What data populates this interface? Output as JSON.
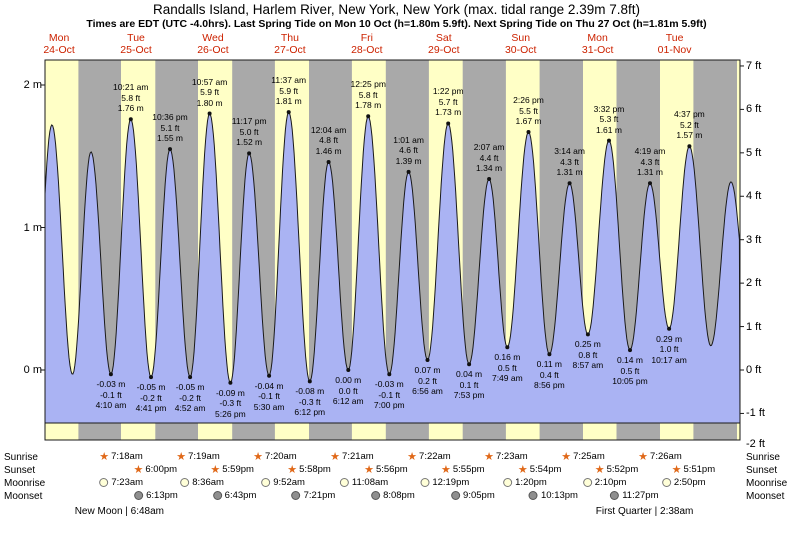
{
  "title": "Randalls Island, Harlem River, New York, New York (max. tidal range 2.39m 7.8ft)",
  "subtitle": "Times are EDT (UTC -4.0hrs). Last Spring Tide on Mon 10 Oct (h=1.80m 5.9ft). Next Spring Tide on Thu 27 Oct (h=1.81m 5.9ft)",
  "colors": {
    "day_label_red": "#cc2200",
    "band_night_gray": "#a9a9a9",
    "band_day_yellow": "#ffffc6",
    "tide_fill_blue": "#aab3f3",
    "curve_stroke": "#1a1a1a",
    "sun_star_orange": "#e06818",
    "moonrise_fill": "#ffffd8",
    "moonset_fill": "#8f8f8f"
  },
  "days": [
    {
      "weekday": "Mon",
      "date": "24-Oct",
      "noon_t": 12
    },
    {
      "weekday": "Tue",
      "date": "25-Oct",
      "noon_t": 36
    },
    {
      "weekday": "Wed",
      "date": "26-Oct",
      "noon_t": 60
    },
    {
      "weekday": "Thu",
      "date": "27-Oct",
      "noon_t": 84
    },
    {
      "weekday": "Fri",
      "date": "28-Oct",
      "noon_t": 108
    },
    {
      "weekday": "Sat",
      "date": "29-Oct",
      "noon_t": 132
    },
    {
      "weekday": "Sun",
      "date": "30-Oct",
      "noon_t": 156
    },
    {
      "weekday": "Mon",
      "date": "31-Oct",
      "noon_t": 180
    },
    {
      "weekday": "Tue",
      "date": "01-Nov",
      "noon_t": 204
    }
  ],
  "y_axis": {
    "left": [
      {
        "label": "2 m",
        "m": 2
      },
      {
        "label": "1 m",
        "m": 1
      },
      {
        "label": "0 m",
        "m": 0
      }
    ],
    "right": [
      {
        "label": "7 ft",
        "ft": 7
      },
      {
        "label": "6 ft",
        "ft": 6
      },
      {
        "label": "5 ft",
        "ft": 5
      },
      {
        "label": "4 ft",
        "ft": 4
      },
      {
        "label": "3 ft",
        "ft": 3
      },
      {
        "label": "2 ft",
        "ft": 2
      },
      {
        "label": "1 ft",
        "ft": 1
      },
      {
        "label": "0 ft",
        "ft": 0
      },
      {
        "label": "-1 ft",
        "ft": -1
      },
      {
        "label": "-2 ft",
        "ft": -2
      }
    ]
  },
  "chart_data": {
    "type": "area",
    "title": "Tide height curve",
    "x_unit": "hours_since_Mon_24_Oct_00:00_EDT",
    "x_range": [
      7.6,
      224.4
    ],
    "y_unit": "m",
    "y_range_m": [
      -0.56,
      2.18
    ],
    "fill_bottom_m": -0.372,
    "daylight_windows": [
      [
        7.28,
        18.02
      ],
      [
        31.3,
        42.0
      ],
      [
        55.32,
        65.98
      ],
      [
        79.33,
        89.97
      ],
      [
        103.35,
        113.93
      ],
      [
        127.37,
        137.92
      ],
      [
        151.38,
        161.9
      ],
      [
        175.42,
        185.87
      ],
      [
        199.43,
        209.85
      ],
      [
        223.45,
        224.4
      ]
    ],
    "extremes": [
      {
        "t": 3.67,
        "m": -0.02,
        "type": "low",
        "label_lines": null
      },
      {
        "t": 9.75,
        "m": 1.72,
        "type": "high",
        "label_lines": null
      },
      {
        "t": 16.17,
        "m": -0.03,
        "type": "low",
        "label_lines": null
      },
      {
        "t": 21.95,
        "m": 1.53,
        "type": "high",
        "label_lines": null
      },
      {
        "t": 28.17,
        "m": -0.03,
        "type": "low",
        "label_lines": [
          "-0.03 m",
          "-0.1 ft",
          "4:10 am"
        ]
      },
      {
        "t": 34.35,
        "m": 1.76,
        "type": "high",
        "label_lines": [
          "10:21 am",
          "5.8 ft",
          "1.76 m"
        ]
      },
      {
        "t": 40.68,
        "m": -0.05,
        "type": "low",
        "label_lines": [
          "-0.05 m",
          "-0.2 ft",
          "4:41 pm"
        ]
      },
      {
        "t": 46.6,
        "m": 1.55,
        "type": "high",
        "label_lines": [
          "10:36 pm",
          "5.1 ft",
          "1.55 m"
        ]
      },
      {
        "t": 52.87,
        "m": -0.05,
        "type": "low",
        "label_lines": [
          "-0.05 m",
          "-0.2 ft",
          "4:52 am"
        ]
      },
      {
        "t": 58.95,
        "m": 1.8,
        "type": "high",
        "label_lines": [
          "10:57 am",
          "5.9 ft",
          "1.80 m"
        ]
      },
      {
        "t": 65.43,
        "m": -0.09,
        "type": "low",
        "label_lines": [
          "-0.09 m",
          "-0.3 ft",
          "5:26 pm"
        ]
      },
      {
        "t": 71.28,
        "m": 1.52,
        "type": "high",
        "label_lines": [
          "11:17 pm",
          "5.0 ft",
          "1.52 m"
        ]
      },
      {
        "t": 77.5,
        "m": -0.04,
        "type": "low",
        "label_lines": [
          "-0.04 m",
          "-0.1 ft",
          "5:30 am"
        ]
      },
      {
        "t": 83.62,
        "m": 1.81,
        "type": "high",
        "label_lines": [
          "11:37 am",
          "5.9 ft",
          "1.81 m"
        ]
      },
      {
        "t": 90.2,
        "m": -0.08,
        "type": "low",
        "label_lines": [
          "-0.08 m",
          "-0.3 ft",
          "6:12 pm"
        ]
      },
      {
        "t": 96.07,
        "m": 1.46,
        "type": "high",
        "label_lines": [
          "12:04 am",
          "4.8 ft",
          "1.46 m"
        ]
      },
      {
        "t": 102.2,
        "m": 0.0,
        "type": "low",
        "label_lines": [
          "0.00 m",
          "0.0 ft",
          "6:12 am"
        ]
      },
      {
        "t": 108.42,
        "m": 1.78,
        "type": "high",
        "label_lines": [
          "12:25 pm",
          "5.8 ft",
          "1.78 m"
        ]
      },
      {
        "t": 115.0,
        "m": -0.03,
        "type": "low",
        "label_lines": [
          "-0.03 m",
          "-0.1 ft",
          "7:00 pm"
        ]
      },
      {
        "t": 121.02,
        "m": 1.39,
        "type": "high",
        "label_lines": [
          "1:01 am",
          "4.6 ft",
          "1.39 m"
        ]
      },
      {
        "t": 126.93,
        "m": 0.07,
        "type": "low",
        "label_lines": [
          "0.07 m",
          "0.2 ft",
          "6:56 am"
        ]
      },
      {
        "t": 133.37,
        "m": 1.73,
        "type": "high",
        "label_lines": [
          "1:22 pm",
          "5.7 ft",
          "1.73 m"
        ]
      },
      {
        "t": 139.88,
        "m": 0.04,
        "type": "low",
        "label_lines": [
          "0.04 m",
          "0.1 ft",
          "7:53 pm"
        ]
      },
      {
        "t": 146.12,
        "m": 1.34,
        "type": "high",
        "label_lines": [
          "2:07 am",
          "4.4 ft",
          "1.34 m"
        ]
      },
      {
        "t": 151.82,
        "m": 0.16,
        "type": "low",
        "label_lines": [
          "0.16 m",
          "0.5 ft",
          "7:49 am"
        ]
      },
      {
        "t": 158.43,
        "m": 1.67,
        "type": "high",
        "label_lines": [
          "2:26 pm",
          "5.5 ft",
          "1.67 m"
        ]
      },
      {
        "t": 164.93,
        "m": 0.11,
        "type": "low",
        "label_lines": [
          "0.11 m",
          "0.4 ft",
          "8:56 pm"
        ]
      },
      {
        "t": 171.23,
        "m": 1.31,
        "type": "high",
        "label_lines": [
          "3:14 am",
          "4.3 ft",
          "1.31 m"
        ]
      },
      {
        "t": 176.95,
        "m": 0.25,
        "type": "low",
        "label_lines": [
          "0.25 m",
          "0.8 ft",
          "8:57 am"
        ]
      },
      {
        "t": 183.53,
        "m": 1.61,
        "type": "high",
        "label_lines": [
          "3:32 pm",
          "5.3 ft",
          "1.61 m"
        ]
      },
      {
        "t": 190.08,
        "m": 0.14,
        "type": "low",
        "label_lines": [
          "0.14 m",
          "0.5 ft",
          "10:05 pm"
        ]
      },
      {
        "t": 196.32,
        "m": 1.31,
        "type": "high",
        "label_lines": [
          "4:19 am",
          "4.3 ft",
          "1.31 m"
        ]
      },
      {
        "t": 202.28,
        "m": 0.29,
        "type": "low",
        "label_lines": [
          "0.29 m",
          "1.0 ft",
          "10:17 am"
        ]
      },
      {
        "t": 208.62,
        "m": 1.57,
        "type": "high",
        "label_lines": [
          "4:37 pm",
          "5.2 ft",
          "1.57 m"
        ]
      },
      {
        "t": 215.3,
        "m": 0.17,
        "type": "low",
        "label_lines": null
      },
      {
        "t": 221.6,
        "m": 1.32,
        "type": "high",
        "label_lines": null
      },
      {
        "t": 227.6,
        "m": 0.3,
        "type": "low",
        "label_lines": null
      }
    ]
  },
  "sun_moon": {
    "rows": [
      {
        "name": "Sunrise",
        "icon": "sunrise-star-icon",
        "events": [
          {
            "t": 31.3,
            "label": "7:18am"
          },
          {
            "t": 55.32,
            "label": "7:19am"
          },
          {
            "t": 79.33,
            "label": "7:20am"
          },
          {
            "t": 103.35,
            "label": "7:21am"
          },
          {
            "t": 127.37,
            "label": "7:22am"
          },
          {
            "t": 151.38,
            "label": "7:23am"
          },
          {
            "t": 175.42,
            "label": "7:25am"
          },
          {
            "t": 199.43,
            "label": "7:26am"
          }
        ]
      },
      {
        "name": "Sunset",
        "icon": "sunset-star-icon",
        "events": [
          {
            "t": 42.0,
            "label": "6:00pm"
          },
          {
            "t": 65.98,
            "label": "5:59pm"
          },
          {
            "t": 89.97,
            "label": "5:58pm"
          },
          {
            "t": 113.93,
            "label": "5:56pm"
          },
          {
            "t": 137.92,
            "label": "5:55pm"
          },
          {
            "t": 161.9,
            "label": "5:54pm"
          },
          {
            "t": 185.87,
            "label": "5:52pm"
          },
          {
            "t": 209.85,
            "label": "5:51pm"
          }
        ]
      },
      {
        "name": "Moonrise",
        "icon": "moonrise-icon",
        "events": [
          {
            "t": 31.38,
            "label": "7:23am"
          },
          {
            "t": 56.6,
            "label": "8:36am"
          },
          {
            "t": 81.87,
            "label": "9:52am"
          },
          {
            "t": 107.13,
            "label": "11:08am"
          },
          {
            "t": 132.32,
            "label": "12:19pm"
          },
          {
            "t": 157.33,
            "label": "1:20pm"
          },
          {
            "t": 182.17,
            "label": "2:10pm"
          },
          {
            "t": 206.83,
            "label": "2:50pm"
          }
        ]
      },
      {
        "name": "Moonset",
        "icon": "moonset-icon",
        "events": [
          {
            "t": 42.22,
            "label": "6:13pm"
          },
          {
            "t": 66.72,
            "label": "6:43pm"
          },
          {
            "t": 91.35,
            "label": "7:21pm"
          },
          {
            "t": 116.13,
            "label": "8:08pm"
          },
          {
            "t": 141.08,
            "label": "9:05pm"
          },
          {
            "t": 166.22,
            "label": "10:13pm"
          },
          {
            "t": 191.45,
            "label": "11:27pm"
          }
        ]
      }
    ],
    "notes": [
      {
        "t": 30.8,
        "label": "New Moon | 6:48am"
      },
      {
        "t": 194.63,
        "label": "First Quarter | 2:38am"
      }
    ]
  }
}
